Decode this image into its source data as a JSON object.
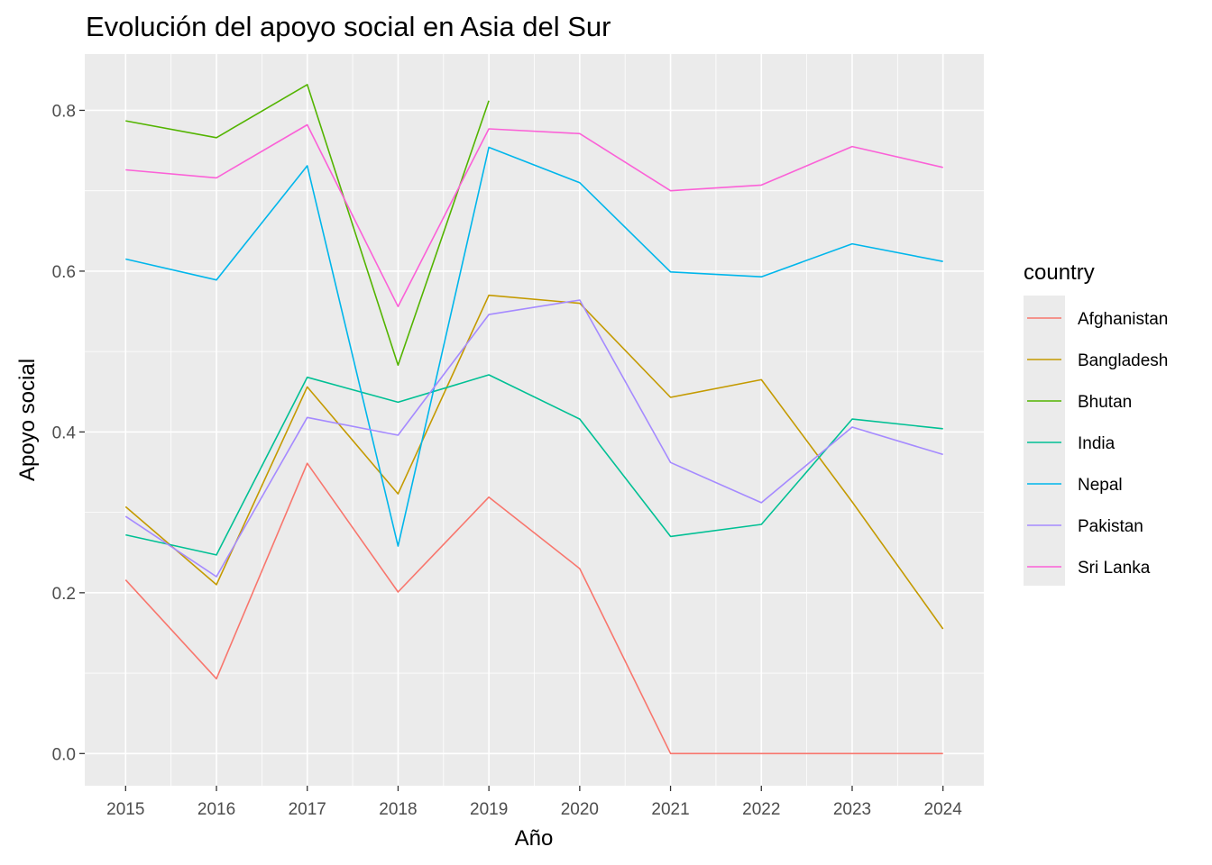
{
  "chart_data": {
    "type": "line",
    "title": "Evolución del apoyo social en Asia del Sur",
    "xlabel": "Año",
    "ylabel": "Apoyo social",
    "x": [
      2015,
      2016,
      2017,
      2018,
      2019,
      2020,
      2021,
      2022,
      2023,
      2024
    ],
    "xlim": [
      2014.55,
      2024.45
    ],
    "ylim": [
      -0.04,
      0.87
    ],
    "yticks": [
      0.0,
      0.2,
      0.4,
      0.6,
      0.8
    ],
    "ytick_labels": [
      "0.0",
      "0.2",
      "0.4",
      "0.6",
      "0.8"
    ],
    "xtick_labels": [
      "2015",
      "2016",
      "2017",
      "2018",
      "2019",
      "2020",
      "2021",
      "2022",
      "2023",
      "2024"
    ],
    "grid": true,
    "panel_background": "#ebebeb",
    "legend": {
      "title": "country",
      "placement": "right"
    },
    "series": [
      {
        "name": "Afghanistan",
        "color": "#F8766D",
        "values": [
          0.216,
          0.093,
          0.361,
          0.201,
          0.319,
          0.23,
          0.0,
          0.0,
          0.0,
          0.0
        ]
      },
      {
        "name": "Bangladesh",
        "color": "#C49A00",
        "values": [
          0.307,
          0.21,
          0.456,
          0.323,
          0.57,
          0.56,
          0.443,
          0.465,
          0.313,
          0.155
        ]
      },
      {
        "name": "Bhutan",
        "color": "#53B400",
        "values": [
          0.787,
          0.766,
          0.832,
          0.483,
          0.812,
          null,
          null,
          null,
          null,
          null
        ]
      },
      {
        "name": "India",
        "color": "#00C094",
        "values": [
          0.272,
          0.247,
          0.468,
          0.437,
          0.471,
          0.416,
          0.27,
          0.285,
          0.416,
          0.404
        ]
      },
      {
        "name": "Nepal",
        "color": "#00B6EB",
        "values": [
          0.615,
          0.589,
          0.731,
          0.258,
          0.754,
          0.71,
          0.599,
          0.593,
          0.634,
          0.612
        ]
      },
      {
        "name": "Pakistan",
        "color": "#A58AFF",
        "values": [
          0.295,
          0.22,
          0.418,
          0.396,
          0.546,
          0.564,
          0.362,
          0.312,
          0.406,
          0.372
        ]
      },
      {
        "name": "Sri Lanka",
        "color": "#FB61D7",
        "values": [
          0.726,
          0.716,
          0.782,
          0.556,
          0.777,
          0.771,
          0.7,
          0.707,
          0.755,
          0.729
        ]
      }
    ]
  }
}
